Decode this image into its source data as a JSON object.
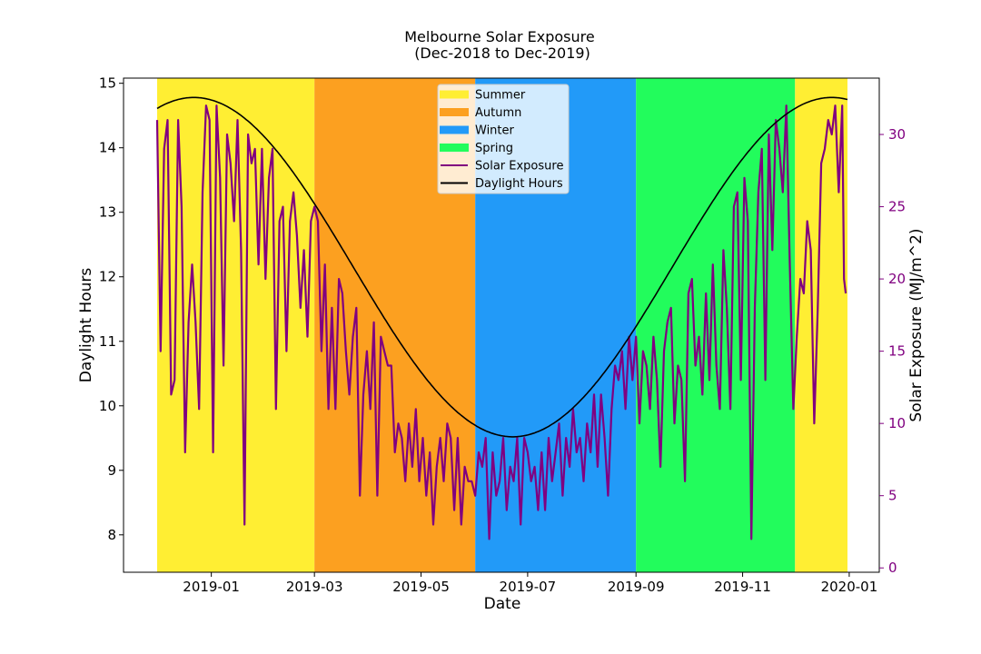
{
  "chart_data": {
    "type": "line",
    "title": "Melbourne Solar Exposure",
    "subtitle": "(Dec-2018 to Dec-2019)",
    "xlabel": "Date",
    "ylabel_left": "Daylight Hours",
    "ylabel_right": "Solar Exposure (MJ/m^2)",
    "ylim_left": [
      7.42,
      15.08
    ],
    "ylim_right": [
      -0.3,
      33.9
    ],
    "x_start": "2018-12-01",
    "x_end": "2019-12-31",
    "x_ticks": [
      {
        "day": 31,
        "label": "2019-01"
      },
      {
        "day": 90,
        "label": "2019-03"
      },
      {
        "day": 151,
        "label": "2019-05"
      },
      {
        "day": 212,
        "label": "2019-07"
      },
      {
        "day": 274,
        "label": "2019-09"
      },
      {
        "day": 335,
        "label": "2019-11"
      },
      {
        "day": 396,
        "label": "2020-01"
      }
    ],
    "y_ticks_left": [
      8,
      9,
      10,
      11,
      12,
      13,
      14,
      15
    ],
    "y_ticks_right": [
      0,
      5,
      10,
      15,
      20,
      25,
      30
    ],
    "seasons": [
      {
        "name": "Summer",
        "start": 0,
        "end": 90,
        "color": "#ffee33"
      },
      {
        "name": "Autumn",
        "start": 90,
        "end": 182,
        "color": "#fca020"
      },
      {
        "name": "Winter",
        "start": 182,
        "end": 274,
        "color": "#229af8"
      },
      {
        "name": "Spring",
        "start": 274,
        "end": 365,
        "color": "#22fc5c"
      },
      {
        "name": "Summer",
        "start": 365,
        "end": 395,
        "color": "#ffee33"
      }
    ],
    "daylight": {
      "name": "Daylight Hours",
      "color": "#000000",
      "mean": 12.15,
      "amplitude": 2.63,
      "peak_day": 21
    },
    "solar": {
      "name": "Solar Exposure",
      "color": "#800080",
      "anchors": [
        [
          0,
          31
        ],
        [
          2,
          15
        ],
        [
          4,
          29
        ],
        [
          6,
          31
        ],
        [
          8,
          12
        ],
        [
          10,
          13
        ],
        [
          12,
          31
        ],
        [
          14,
          25
        ],
        [
          16,
          8
        ],
        [
          18,
          17
        ],
        [
          20,
          21
        ],
        [
          22,
          17
        ],
        [
          24,
          11
        ],
        [
          26,
          26
        ],
        [
          28,
          32
        ],
        [
          30,
          31
        ],
        [
          32,
          8
        ],
        [
          34,
          32
        ],
        [
          36,
          27
        ],
        [
          38,
          14
        ],
        [
          40,
          30
        ],
        [
          42,
          28
        ],
        [
          44,
          24
        ],
        [
          46,
          31
        ],
        [
          48,
          22
        ],
        [
          50,
          3
        ],
        [
          52,
          30
        ],
        [
          54,
          28
        ],
        [
          56,
          29
        ],
        [
          58,
          21
        ],
        [
          60,
          29
        ],
        [
          62,
          20
        ],
        [
          64,
          27
        ],
        [
          66,
          29
        ],
        [
          68,
          11
        ],
        [
          70,
          24
        ],
        [
          72,
          25
        ],
        [
          74,
          15
        ],
        [
          76,
          24
        ],
        [
          78,
          26
        ],
        [
          80,
          23
        ],
        [
          82,
          18
        ],
        [
          84,
          22
        ],
        [
          86,
          16
        ],
        [
          88,
          24
        ],
        [
          90,
          25
        ],
        [
          92,
          24
        ],
        [
          94,
          15
        ],
        [
          96,
          21
        ],
        [
          98,
          11
        ],
        [
          100,
          18
        ],
        [
          102,
          11
        ],
        [
          104,
          20
        ],
        [
          106,
          19
        ],
        [
          108,
          15
        ],
        [
          110,
          12
        ],
        [
          112,
          16
        ],
        [
          114,
          18
        ],
        [
          116,
          5
        ],
        [
          118,
          12
        ],
        [
          120,
          15
        ],
        [
          122,
          11
        ],
        [
          124,
          17
        ],
        [
          126,
          5
        ],
        [
          128,
          16
        ],
        [
          130,
          15
        ],
        [
          132,
          14
        ],
        [
          134,
          14
        ],
        [
          136,
          8
        ],
        [
          138,
          10
        ],
        [
          140,
          9
        ],
        [
          142,
          6
        ],
        [
          144,
          10
        ],
        [
          146,
          7
        ],
        [
          148,
          11
        ],
        [
          150,
          6
        ],
        [
          152,
          9
        ],
        [
          154,
          5
        ],
        [
          156,
          8
        ],
        [
          158,
          3
        ],
        [
          160,
          7
        ],
        [
          162,
          9
        ],
        [
          164,
          6
        ],
        [
          166,
          10
        ],
        [
          168,
          9
        ],
        [
          170,
          4
        ],
        [
          172,
          9
        ],
        [
          174,
          3
        ],
        [
          176,
          7
        ],
        [
          178,
          6
        ],
        [
          180,
          6
        ],
        [
          182,
          5
        ],
        [
          184,
          8
        ],
        [
          186,
          7
        ],
        [
          188,
          9
        ],
        [
          190,
          2
        ],
        [
          192,
          8
        ],
        [
          194,
          5
        ],
        [
          196,
          6
        ],
        [
          198,
          9
        ],
        [
          200,
          4
        ],
        [
          202,
          7
        ],
        [
          204,
          6
        ],
        [
          206,
          9
        ],
        [
          208,
          3
        ],
        [
          210,
          9
        ],
        [
          212,
          8
        ],
        [
          214,
          6
        ],
        [
          216,
          7
        ],
        [
          218,
          4
        ],
        [
          220,
          8
        ],
        [
          222,
          4
        ],
        [
          224,
          9
        ],
        [
          226,
          6
        ],
        [
          228,
          8
        ],
        [
          230,
          10
        ],
        [
          232,
          5
        ],
        [
          234,
          9
        ],
        [
          236,
          7
        ],
        [
          238,
          11
        ],
        [
          240,
          8
        ],
        [
          242,
          9
        ],
        [
          244,
          6
        ],
        [
          246,
          10
        ],
        [
          248,
          8
        ],
        [
          250,
          12
        ],
        [
          252,
          7
        ],
        [
          254,
          12
        ],
        [
          256,
          9
        ],
        [
          258,
          5
        ],
        [
          260,
          11
        ],
        [
          262,
          14
        ],
        [
          264,
          13
        ],
        [
          266,
          15
        ],
        [
          268,
          11
        ],
        [
          270,
          16
        ],
        [
          272,
          13
        ],
        [
          274,
          16
        ],
        [
          276,
          10
        ],
        [
          278,
          15
        ],
        [
          280,
          14
        ],
        [
          282,
          11
        ],
        [
          284,
          16
        ],
        [
          286,
          13
        ],
        [
          288,
          7
        ],
        [
          290,
          15
        ],
        [
          292,
          17
        ],
        [
          294,
          18
        ],
        [
          296,
          10
        ],
        [
          298,
          14
        ],
        [
          300,
          13
        ],
        [
          302,
          6
        ],
        [
          304,
          19
        ],
        [
          306,
          20
        ],
        [
          308,
          14
        ],
        [
          310,
          16
        ],
        [
          312,
          12
        ],
        [
          314,
          19
        ],
        [
          316,
          13
        ],
        [
          318,
          21
        ],
        [
          320,
          14
        ],
        [
          322,
          11
        ],
        [
          324,
          22
        ],
        [
          326,
          18
        ],
        [
          328,
          11
        ],
        [
          330,
          25
        ],
        [
          332,
          26
        ],
        [
          334,
          13
        ],
        [
          336,
          27
        ],
        [
          338,
          24
        ],
        [
          340,
          2
        ],
        [
          342,
          18
        ],
        [
          344,
          26
        ],
        [
          346,
          29
        ],
        [
          348,
          13
        ],
        [
          350,
          30
        ],
        [
          352,
          22
        ],
        [
          354,
          31
        ],
        [
          356,
          29
        ],
        [
          358,
          26
        ],
        [
          360,
          32
        ],
        [
          362,
          21
        ],
        [
          364,
          11
        ],
        [
          366,
          16
        ],
        [
          368,
          20
        ],
        [
          370,
          19
        ],
        [
          372,
          24
        ],
        [
          374,
          22
        ],
        [
          376,
          10
        ],
        [
          378,
          18
        ],
        [
          380,
          28
        ],
        [
          382,
          29
        ],
        [
          384,
          31
        ],
        [
          386,
          30
        ],
        [
          388,
          32
        ],
        [
          390,
          26
        ],
        [
          392,
          32
        ],
        [
          393,
          20
        ],
        [
          394,
          19
        ]
      ]
    },
    "legend": [
      {
        "label": "Summer",
        "kind": "patch",
        "color": "#ffee33"
      },
      {
        "label": "Autumn",
        "kind": "patch",
        "color": "#fca020"
      },
      {
        "label": "Winter",
        "kind": "patch",
        "color": "#229af8"
      },
      {
        "label": "Spring",
        "kind": "patch",
        "color": "#22fc5c"
      },
      {
        "label": "Solar Exposure",
        "kind": "line",
        "color": "#800080"
      },
      {
        "label": "Daylight Hours",
        "kind": "line",
        "color": "#000000"
      }
    ]
  }
}
